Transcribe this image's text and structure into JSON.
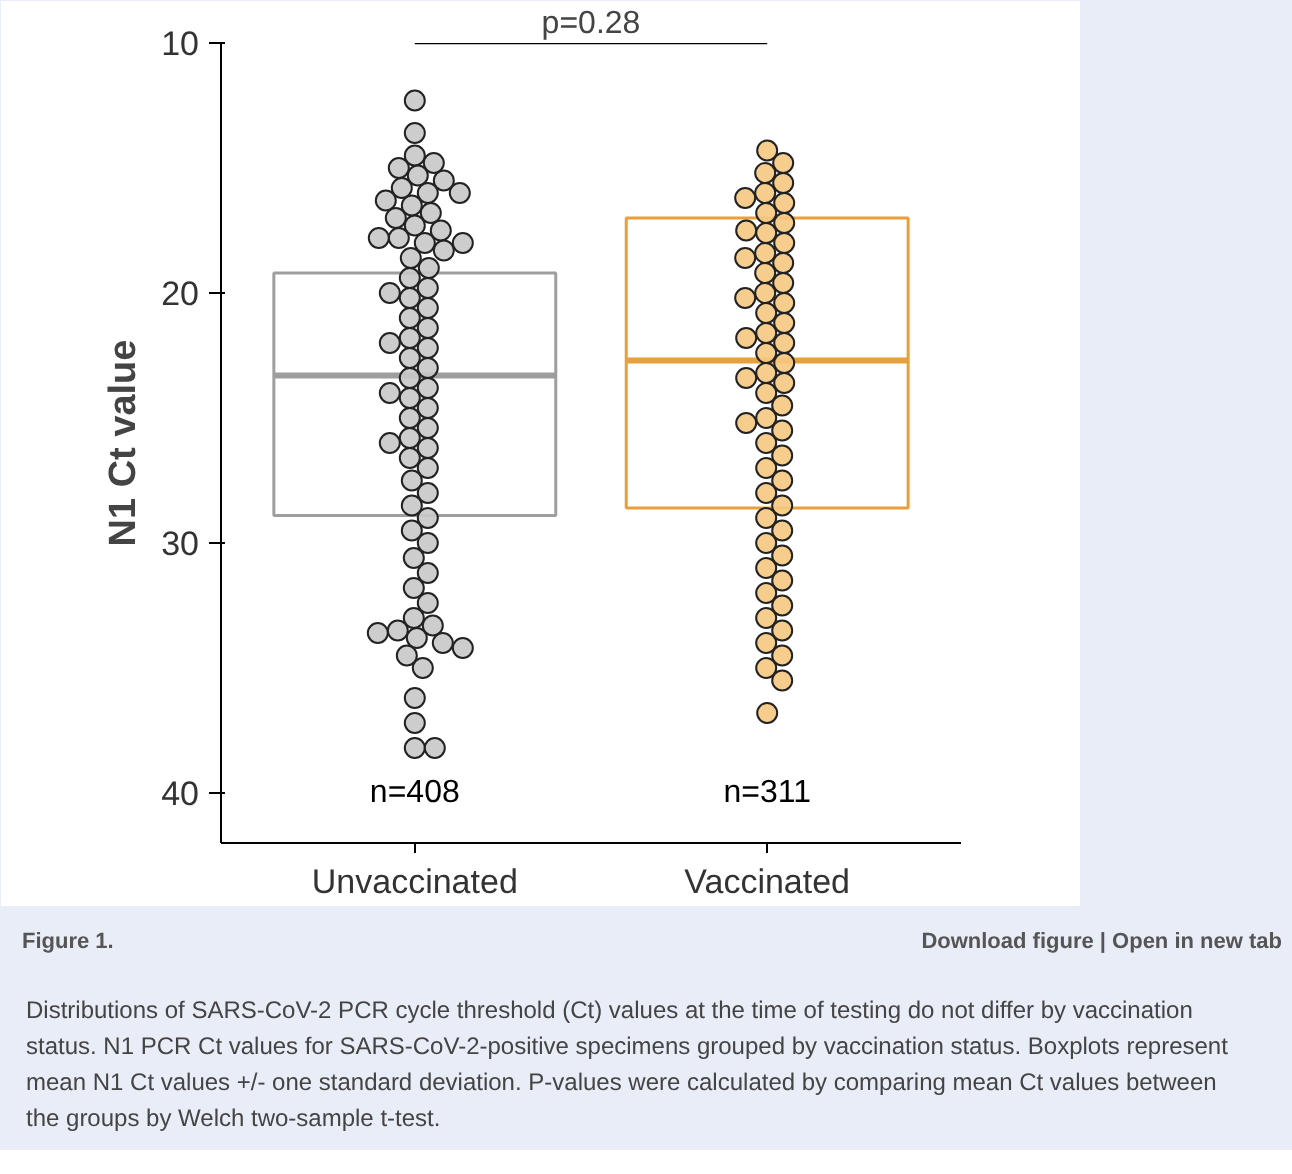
{
  "chart_data": {
    "type": "box",
    "ylabel": "N1 Ct value",
    "categories": [
      "Unvaccinated",
      "Vaccinated"
    ],
    "ylim": [
      42,
      10
    ],
    "yticks": [
      10,
      20,
      30,
      40
    ],
    "grid": false,
    "boxes": [
      {
        "low": 19.2,
        "q1": 19.2,
        "median": 23.3,
        "q3": 28.9,
        "high": 28.9
      },
      {
        "low": 17.0,
        "q1": 17.0,
        "median": 22.7,
        "q3": 28.6,
        "high": 28.6
      }
    ],
    "colors": [
      "#9e9e9e",
      "#e8a03c"
    ],
    "series": [
      {
        "type": "scatter",
        "color": "#c8c8c8",
        "x": [
          "Unvaccinated",
          "Unvaccinated",
          "Unvaccinated",
          "Unvaccinated",
          "Unvaccinated",
          "Unvaccinated",
          "Unvaccinated",
          "Unvaccinated",
          "Unvaccinated",
          "Unvaccinated",
          "Unvaccinated",
          "Unvaccinated",
          "Unvaccinated",
          "Unvaccinated",
          "Unvaccinated",
          "Unvaccinated",
          "Unvaccinated",
          "Unvaccinated",
          "Unvaccinated",
          "Unvaccinated",
          "Unvaccinated",
          "Unvaccinated",
          "Unvaccinated",
          "Unvaccinated",
          "Unvaccinated",
          "Unvaccinated",
          "Unvaccinated",
          "Unvaccinated",
          "Unvaccinated",
          "Unvaccinated",
          "Unvaccinated",
          "Unvaccinated",
          "Unvaccinated",
          "Unvaccinated",
          "Unvaccinated",
          "Unvaccinated",
          "Unvaccinated",
          "Unvaccinated",
          "Unvaccinated",
          "Unvaccinated",
          "Unvaccinated",
          "Unvaccinated",
          "Unvaccinated",
          "Unvaccinated",
          "Unvaccinated",
          "Unvaccinated",
          "Unvaccinated",
          "Unvaccinated",
          "Unvaccinated",
          "Unvaccinated",
          "Unvaccinated",
          "Unvaccinated",
          "Unvaccinated",
          "Unvaccinated",
          "Unvaccinated",
          "Unvaccinated",
          "Unvaccinated",
          "Unvaccinated",
          "Unvaccinated",
          "Unvaccinated",
          "Unvaccinated",
          "Unvaccinated",
          "Unvaccinated",
          "Unvaccinated",
          "Unvaccinated",
          "Unvaccinated",
          "Unvaccinated",
          "Unvaccinated",
          "Unvaccinated",
          "Unvaccinated"
        ],
        "values": [
          12.3,
          13.6,
          14.5,
          14.8,
          15.0,
          15.3,
          15.5,
          15.8,
          16.0,
          16.3,
          16.5,
          16.8,
          17.0,
          17.3,
          17.5,
          17.8,
          17.8,
          18.0,
          18.3,
          18.6,
          19.0,
          19.4,
          19.8,
          20.2,
          20.6,
          21.0,
          21.4,
          21.8,
          22.2,
          22.6,
          23.0,
          23.4,
          23.8,
          24.2,
          24.6,
          25.0,
          25.4,
          25.8,
          26.2,
          26.6,
          27.0,
          27.5,
          28.0,
          28.5,
          29.0,
          29.5,
          30.0,
          30.6,
          31.2,
          31.8,
          32.4,
          33.0,
          33.3,
          33.5,
          33.8,
          34.0,
          34.5,
          35.0,
          36.2,
          37.2,
          38.2,
          38.2,
          16.0,
          18.0,
          20.0,
          22.0,
          24.0,
          26.0,
          33.6,
          34.2
        ]
      },
      {
        "type": "scatter",
        "color": "#f5c880",
        "x": [
          "Vaccinated",
          "Vaccinated",
          "Vaccinated",
          "Vaccinated",
          "Vaccinated",
          "Vaccinated",
          "Vaccinated",
          "Vaccinated",
          "Vaccinated",
          "Vaccinated",
          "Vaccinated",
          "Vaccinated",
          "Vaccinated",
          "Vaccinated",
          "Vaccinated",
          "Vaccinated",
          "Vaccinated",
          "Vaccinated",
          "Vaccinated",
          "Vaccinated",
          "Vaccinated",
          "Vaccinated",
          "Vaccinated",
          "Vaccinated",
          "Vaccinated",
          "Vaccinated",
          "Vaccinated",
          "Vaccinated",
          "Vaccinated",
          "Vaccinated",
          "Vaccinated",
          "Vaccinated",
          "Vaccinated",
          "Vaccinated",
          "Vaccinated",
          "Vaccinated",
          "Vaccinated",
          "Vaccinated",
          "Vaccinated",
          "Vaccinated",
          "Vaccinated",
          "Vaccinated",
          "Vaccinated",
          "Vaccinated",
          "Vaccinated",
          "Vaccinated",
          "Vaccinated",
          "Vaccinated",
          "Vaccinated",
          "Vaccinated",
          "Vaccinated",
          "Vaccinated",
          "Vaccinated",
          "Vaccinated",
          "Vaccinated",
          "Vaccinated"
        ],
        "values": [
          14.3,
          14.8,
          15.2,
          15.6,
          16.0,
          16.4,
          16.8,
          17.2,
          17.6,
          18.0,
          18.4,
          18.8,
          19.2,
          19.6,
          20.0,
          20.4,
          20.8,
          21.2,
          21.6,
          22.0,
          22.4,
          22.8,
          23.2,
          23.6,
          24.0,
          24.5,
          25.0,
          25.5,
          26.0,
          26.5,
          27.0,
          27.5,
          28.0,
          28.5,
          29.0,
          29.5,
          30.0,
          30.5,
          31.0,
          31.5,
          32.0,
          32.5,
          33.0,
          33.5,
          34.0,
          34.5,
          35.0,
          35.5,
          36.8,
          16.2,
          17.5,
          18.6,
          20.2,
          21.8,
          23.4,
          25.2
        ]
      }
    ],
    "annotations": [
      "p=0.28",
      "n=408",
      "n=311",
      "Figure 1.",
      "Download figure | Open in new tab",
      "Distributions of SARS-CoV-2 PCR cycle threshold (Ct) values at the time of testing do not differ by vaccination status. N1 PCR Ct values for SARS-CoV-2-positive specimens grouped by vaccination status. Boxplots represent mean N1 Ct values +/- one standard deviation. P-values were calculated by comparing mean Ct values between the groups by Welch two-sample t-test."
    ]
  }
}
